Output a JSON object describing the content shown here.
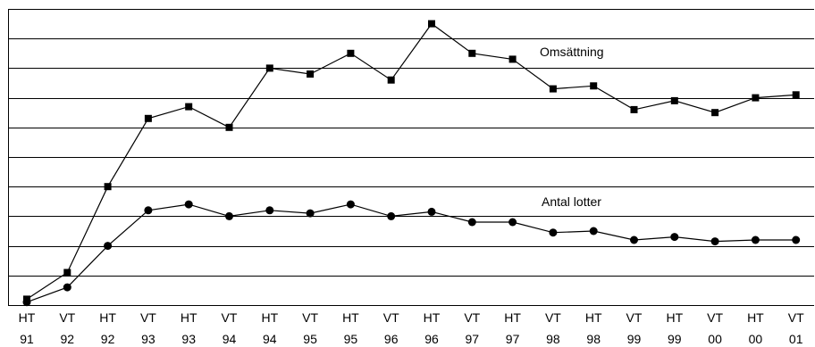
{
  "chart_data": {
    "type": "line",
    "title": "",
    "xlabel": "",
    "ylabel": "",
    "ylim": [
      0,
      10
    ],
    "grid": true,
    "y_tick_labels_shown": false,
    "categories": [
      [
        "HT",
        "91"
      ],
      [
        "VT",
        "92"
      ],
      [
        "HT",
        "92"
      ],
      [
        "VT",
        "93"
      ],
      [
        "HT",
        "93"
      ],
      [
        "VT",
        "94"
      ],
      [
        "HT",
        "94"
      ],
      [
        "VT",
        "95"
      ],
      [
        "HT",
        "95"
      ],
      [
        "VT",
        "96"
      ],
      [
        "HT",
        "96"
      ],
      [
        "VT",
        "97"
      ],
      [
        "HT",
        "97"
      ],
      [
        "VT",
        "98"
      ],
      [
        "HT",
        "98"
      ],
      [
        "VT",
        "99"
      ],
      [
        "HT",
        "99"
      ],
      [
        "VT",
        "00"
      ],
      [
        "HT",
        "00"
      ],
      [
        "VT",
        "01"
      ]
    ],
    "series": [
      {
        "name": "Omsättning",
        "marker": "square",
        "color": "#000000",
        "values": [
          0.2,
          1.1,
          4.0,
          6.3,
          6.7,
          6.0,
          8.0,
          7.8,
          8.5,
          7.6,
          9.5,
          8.5,
          8.3,
          7.3,
          7.4,
          6.6,
          6.9,
          6.5,
          7.0,
          7.1
        ]
      },
      {
        "name": "Antal lotter",
        "marker": "circle",
        "color": "#000000",
        "values": [
          0.1,
          0.6,
          2.0,
          3.2,
          3.4,
          3.0,
          3.2,
          3.1,
          3.4,
          3.0,
          3.15,
          2.8,
          2.8,
          2.45,
          2.5,
          2.2,
          2.3,
          2.15,
          2.2,
          2.2
        ]
      }
    ]
  }
}
